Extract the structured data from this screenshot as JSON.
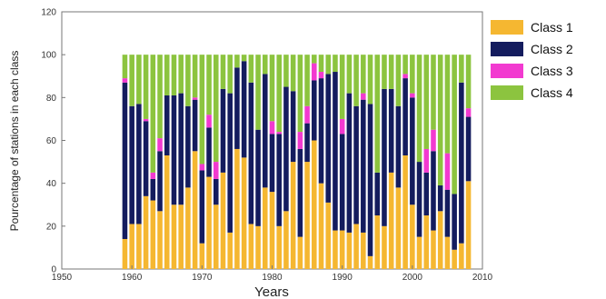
{
  "chart_data": {
    "type": "bar",
    "stacked": true,
    "xlabel": "Years",
    "ylabel": "Pourcentage of stations in each class",
    "xlim": [
      1950,
      2010
    ],
    "ylim": [
      0,
      120
    ],
    "xticks": [
      "1950",
      "1960",
      "1970",
      "1980",
      "1990",
      "2000",
      "2010"
    ],
    "yticks": [
      "0",
      "20",
      "40",
      "60",
      "80",
      "100",
      "120"
    ],
    "legend_position": "right",
    "x": [
      1959,
      1960,
      1961,
      1962,
      1963,
      1964,
      1965,
      1966,
      1967,
      1968,
      1969,
      1970,
      1971,
      1972,
      1973,
      1974,
      1975,
      1976,
      1977,
      1978,
      1979,
      1980,
      1981,
      1982,
      1983,
      1984,
      1985,
      1986,
      1987,
      1988,
      1989,
      1990,
      1991,
      1992,
      1993,
      1994,
      1995,
      1996,
      1997,
      1998,
      1999,
      2000,
      2001,
      2002,
      2003,
      2004,
      2005,
      2006,
      2007,
      2008
    ],
    "series": [
      {
        "name": "Class 1",
        "color": "#f5b731",
        "values": [
          14,
          21,
          21,
          34,
          32,
          27,
          53,
          30,
          30,
          38,
          55,
          12,
          43,
          30,
          45,
          17,
          56,
          52,
          21,
          20,
          38,
          36,
          20,
          27,
          50,
          15,
          50,
          60,
          40,
          31,
          18,
          18,
          17,
          21,
          17,
          6,
          25,
          20,
          45,
          38,
          53,
          30,
          15,
          25,
          18,
          27,
          15,
          9,
          12,
          41
        ]
      },
      {
        "name": "Class 2",
        "color": "#141c5e",
        "values": [
          73,
          55,
          56,
          35,
          10,
          28,
          28,
          51,
          52,
          38,
          24,
          34,
          23,
          12,
          39,
          65,
          38,
          45,
          66,
          45,
          53,
          27,
          43,
          58,
          33,
          41,
          18,
          28,
          49,
          60,
          74,
          45,
          65,
          55,
          62,
          71,
          20,
          64,
          39,
          38,
          36,
          50,
          35,
          20,
          37,
          12,
          22,
          26,
          75,
          30
        ]
      },
      {
        "name": "Class 3",
        "color": "#f23ad0",
        "values": [
          2,
          0,
          0,
          1,
          3,
          6,
          0,
          0,
          0,
          0,
          1,
          3,
          6,
          8,
          0,
          0,
          0,
          0,
          0,
          0,
          0,
          6,
          1,
          0,
          0,
          8,
          8,
          8,
          3,
          0,
          0,
          7,
          0,
          0,
          3,
          0,
          0,
          0,
          0,
          0,
          2,
          2,
          0,
          11,
          10,
          0,
          17,
          0,
          0,
          4
        ]
      },
      {
        "name": "Class 4",
        "color": "#8cc43f",
        "values": [
          11,
          24,
          23,
          30,
          55,
          39,
          19,
          19,
          18,
          24,
          20,
          51,
          28,
          50,
          16,
          18,
          6,
          3,
          13,
          35,
          9,
          31,
          36,
          15,
          17,
          36,
          24,
          4,
          8,
          9,
          8,
          30,
          18,
          24,
          18,
          23,
          55,
          16,
          16,
          24,
          9,
          18,
          50,
          44,
          35,
          61,
          46,
          65,
          13,
          25
        ]
      }
    ]
  }
}
